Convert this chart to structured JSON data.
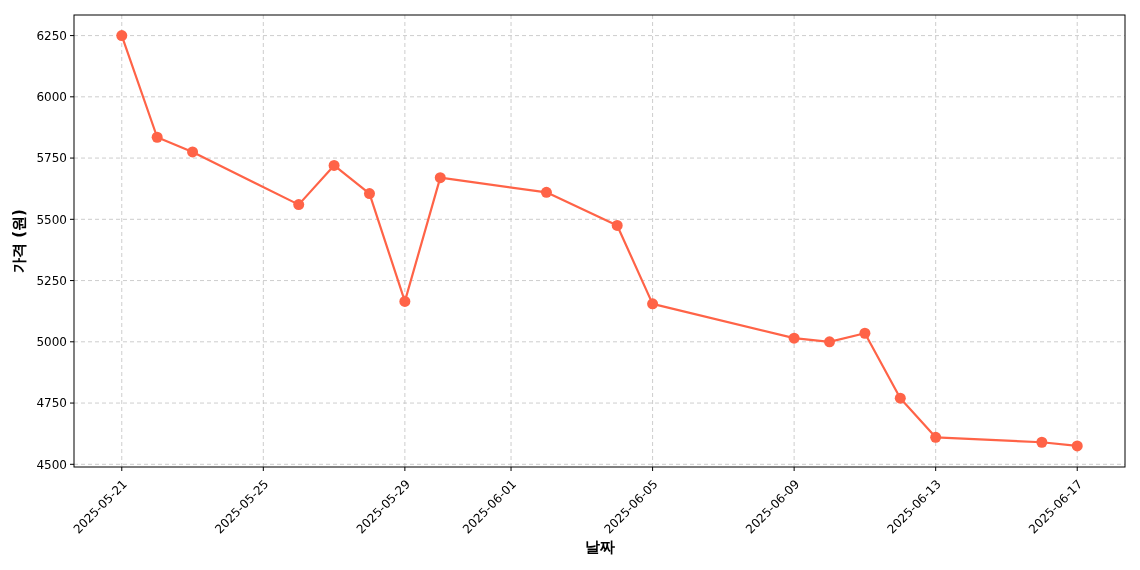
{
  "chart_data": {
    "type": "line",
    "xlabel": "날짜",
    "ylabel": "가격 (원)",
    "x": [
      "2025-05-21",
      "2025-05-22",
      "2025-05-23",
      "2025-05-26",
      "2025-05-27",
      "2025-05-28",
      "2025-05-29",
      "2025-05-30",
      "2025-06-02",
      "2025-06-04",
      "2025-06-05",
      "2025-06-09",
      "2025-06-10",
      "2025-06-11",
      "2025-06-12",
      "2025-06-13",
      "2025-06-16",
      "2025-06-17"
    ],
    "series": [
      {
        "color": "#ff6347",
        "values": [
          6250,
          5835,
          5775,
          5560,
          5720,
          5605,
          5165,
          5670,
          5610,
          5475,
          5155,
          5015,
          5000,
          5035,
          4770,
          4610,
          4590,
          4575
        ]
      }
    ],
    "xlim": [
      "2025-05-19T15:36",
      "2025-06-18T08:24"
    ],
    "ylim": [
      4489,
      6334
    ],
    "xticks": [
      "2025-05-21",
      "2025-05-25",
      "2025-05-29",
      "2025-06-01",
      "2025-06-05",
      "2025-06-09",
      "2025-06-13",
      "2025-06-17"
    ],
    "yticks": [
      4500,
      4750,
      5000,
      5250,
      5500,
      5750,
      6000,
      6250
    ],
    "grid": true,
    "marker": "circle",
    "line_style": "solid"
  }
}
